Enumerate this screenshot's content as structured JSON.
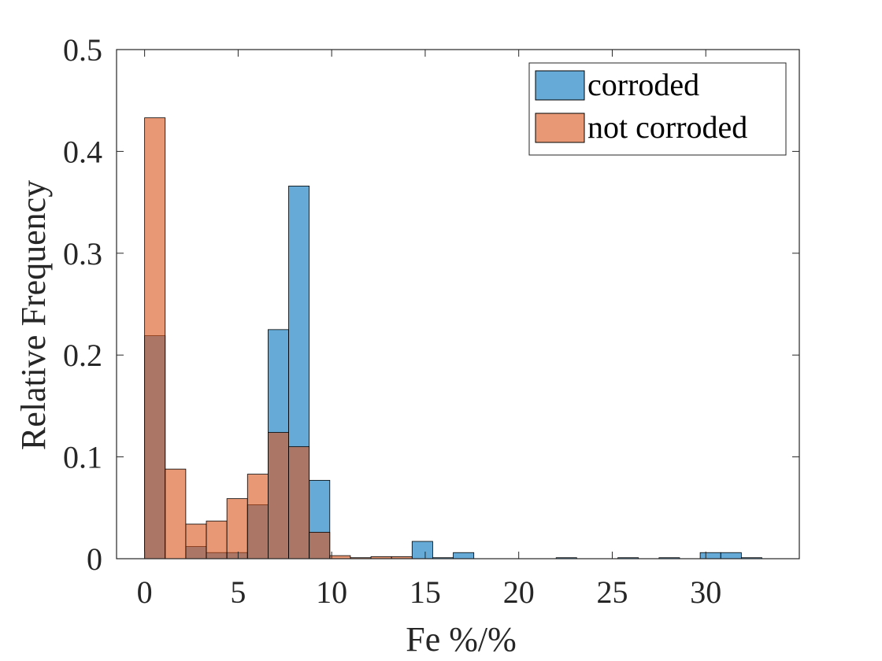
{
  "chart_data": {
    "type": "bar",
    "subtype": "overlapping-histogram",
    "title": "",
    "xlabel": "Fe %/%",
    "ylabel": "Relative Frequency",
    "xlim": [
      -1.5,
      35
    ],
    "ylim": [
      0,
      0.5
    ],
    "xticks": [
      0,
      5,
      10,
      15,
      20,
      25,
      30
    ],
    "yticks": [
      0,
      0.1,
      0.2,
      0.3,
      0.4,
      0.5
    ],
    "ytick_labels": [
      "0",
      "0.1",
      "0.2",
      "0.3",
      "0.4",
      "0.5"
    ],
    "grid": false,
    "legend_position": "top-right",
    "bin_width": 1.1,
    "bin_starts": [
      0,
      1.1,
      2.2,
      3.3,
      4.4,
      5.5,
      6.6,
      7.7,
      8.8,
      9.9,
      11.0,
      12.1,
      13.2,
      14.3,
      15.4,
      16.5,
      17.6,
      18.7,
      19.8,
      20.9,
      22.0,
      23.1,
      24.2,
      25.3,
      26.4,
      27.5,
      28.6,
      29.7,
      30.8,
      31.9
    ],
    "series": [
      {
        "name": "corroded",
        "color": "#0072BD",
        "values": [
          0.219,
          0,
          0.012,
          0.006,
          0.006,
          0.053,
          0.225,
          0.366,
          0.077,
          0,
          0,
          0,
          0,
          0.017,
          0.001,
          0.006,
          0,
          0,
          0,
          0,
          0.001,
          0,
          0,
          0.001,
          0,
          0.001,
          0,
          0.006,
          0.006,
          0.001
        ]
      },
      {
        "name": "not corroded",
        "color": "#D95319",
        "values": [
          0.433,
          0.088,
          0.034,
          0.037,
          0.059,
          0.083,
          0.124,
          0.11,
          0.026,
          0.003,
          0.001,
          0.002,
          0.002,
          0,
          0,
          0,
          0,
          0,
          0,
          0,
          0,
          0,
          0,
          0,
          0,
          0,
          0,
          0,
          0,
          0
        ]
      }
    ]
  }
}
